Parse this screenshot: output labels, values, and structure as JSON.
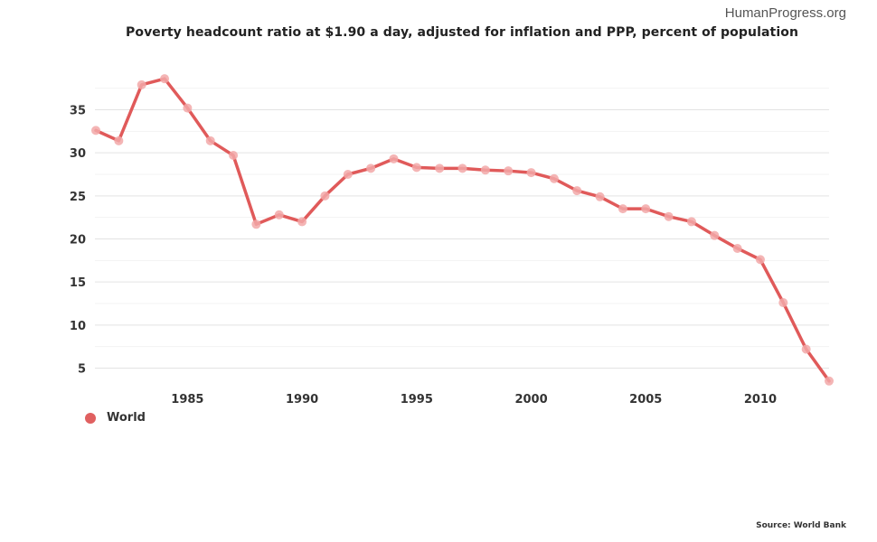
{
  "brand": "HumanProgress.org",
  "source": "Source: World Bank",
  "colors": {
    "line": "#e05a5a",
    "marker": "#f2a8a8",
    "grid": "#e3e3e3",
    "minor_grid": "#f3f3f3"
  },
  "chart_data": {
    "type": "line",
    "title": "Poverty headcount ratio at $1.90 a day, adjusted for inflation and PPP, percent of population",
    "xlabel": "",
    "ylabel": "",
    "xlim": [
      1981,
      2013
    ],
    "ylim": [
      3,
      40
    ],
    "x_ticks": [
      1985,
      1990,
      1995,
      2000,
      2005,
      2010
    ],
    "y_ticks": [
      5,
      10,
      15,
      20,
      25,
      30,
      35
    ],
    "grid": true,
    "legend_position": "bottom-left",
    "series": [
      {
        "name": "World",
        "x": [
          1981,
          1982,
          1983,
          1984,
          1985,
          1986,
          1987,
          1988,
          1989,
          1990,
          1991,
          1992,
          1993,
          1994,
          1995,
          1996,
          1997,
          1998,
          1999,
          2000,
          2001,
          2002,
          2003,
          2004,
          2005,
          2006,
          2007,
          2008,
          2009,
          2010,
          2011,
          2012,
          2013
        ],
        "values": [
          32.6,
          31.4,
          37.9,
          38.6,
          35.2,
          31.4,
          29.7,
          21.7,
          22.8,
          22.0,
          25.0,
          27.5,
          28.2,
          29.3,
          28.3,
          28.2,
          28.2,
          28.0,
          27.9,
          27.7,
          27.0,
          25.6,
          24.9,
          23.5,
          23.5,
          22.6,
          22.0,
          20.4,
          18.9,
          17.6,
          12.6,
          7.2,
          3.5
        ]
      }
    ]
  }
}
